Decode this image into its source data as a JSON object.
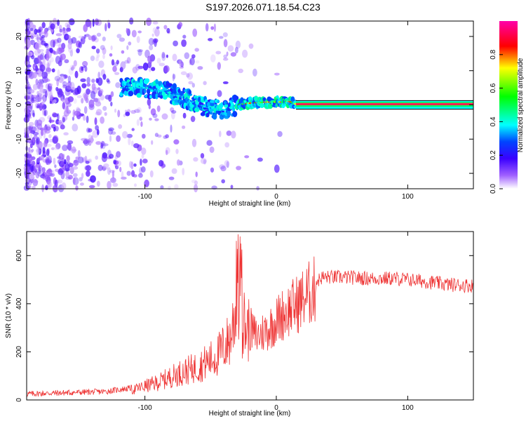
{
  "title": "S197.2026.071.18.54.C23",
  "colors": {
    "snr_line": "#ee3333",
    "axis": "#000000",
    "background": "#ffffff"
  },
  "chart_data": [
    {
      "type": "heatmap",
      "name": "spectrogram",
      "xlabel": "Height of straight line (km)",
      "ylabel": "Frequency (Hz)",
      "xlim": [
        -190,
        150
      ],
      "ylim": [
        -24.5,
        24.5
      ],
      "xticks": [
        -100,
        0,
        100
      ],
      "yticks": [
        -20,
        -10,
        0,
        10,
        20
      ],
      "colorbar": {
        "label": "Normalized spectral amplitude",
        "range": [
          0,
          1
        ],
        "ticks": [
          "0.0",
          "0.2",
          "0.4",
          "0.6",
          "0.8"
        ],
        "stops": [
          "#ffffff",
          "#6a00ff",
          "#0000ff",
          "#00ffff",
          "#00ff00",
          "#ffff00",
          "#ff0000",
          "#ff00ff"
        ]
      },
      "ridge": {
        "description_points_x": [
          -115,
          -100,
          -85,
          -70,
          -55,
          -40,
          -30,
          -20,
          -10,
          0,
          10,
          15,
          150
        ],
        "description_points_y": [
          5,
          5,
          4,
          2,
          -0.5,
          -1.5,
          0,
          0.5,
          0.8,
          0.8,
          1,
          0.2,
          0.2
        ]
      }
    },
    {
      "type": "line",
      "name": "snr",
      "xlabel": "Height of straight line (km)",
      "ylabel": "SNR (10 * v/v)",
      "xlim": [
        -190,
        150
      ],
      "ylim": [
        0,
        700
      ],
      "xticks": [
        -100,
        0,
        100
      ],
      "yticks": [
        0,
        200,
        400,
        600
      ],
      "envelope_x": [
        -190,
        -160,
        -130,
        -110,
        -90,
        -75,
        -60,
        -45,
        -35,
        -30,
        -25,
        -15,
        -5,
        5,
        15,
        25,
        35,
        50,
        70,
        90,
        110,
        130,
        150
      ],
      "envelope_y": [
        20,
        25,
        30,
        45,
        80,
        120,
        150,
        200,
        280,
        450,
        350,
        280,
        320,
        380,
        420,
        470,
        510,
        510,
        505,
        505,
        495,
        480,
        475
      ]
    }
  ],
  "xlabel_text": "Height of straight line (km)",
  "freq_ylabel": "Frequency (Hz)",
  "snr_ylabel": "SNR (10 * v/v)",
  "colorbar_label": "Normalized spectral amplitude"
}
